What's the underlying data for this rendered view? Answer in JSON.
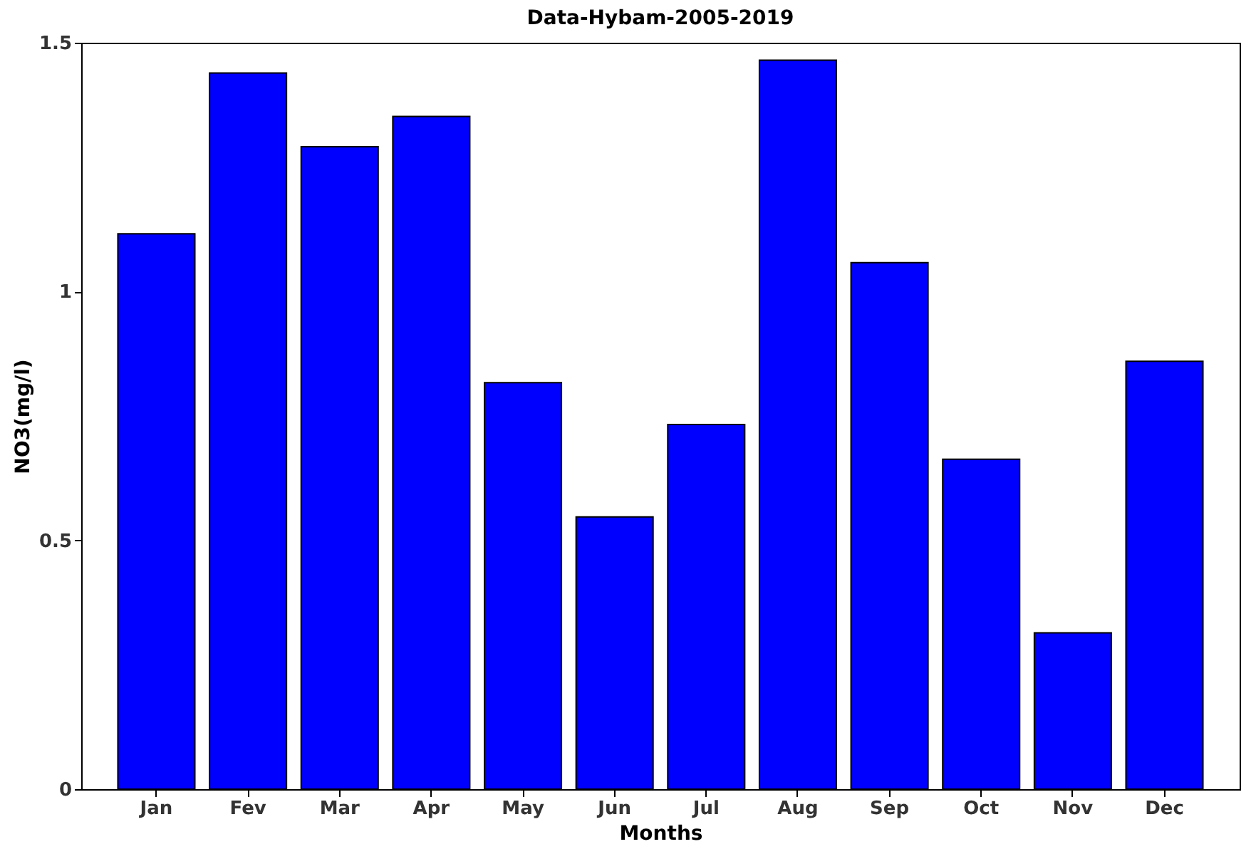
{
  "chart_data": {
    "type": "bar",
    "title": "Data-Hybam-2005-2019",
    "xlabel": "Months",
    "ylabel": "NO3(mg/l)",
    "categories": [
      "Jan",
      "Fev",
      "Mar",
      "Apr",
      "May",
      "Jun",
      "Jul",
      "Aug",
      "Sep",
      "Oct",
      "Nov",
      "Dec"
    ],
    "values": [
      1.116,
      1.439,
      1.291,
      1.352,
      0.817,
      0.547,
      0.733,
      1.465,
      1.058,
      0.663,
      0.314,
      0.86
    ],
    "color": "#0000ff",
    "ylim": [
      0,
      1.5
    ],
    "yticks": [
      0,
      0.5,
      1,
      1.5
    ],
    "grid": false
  }
}
